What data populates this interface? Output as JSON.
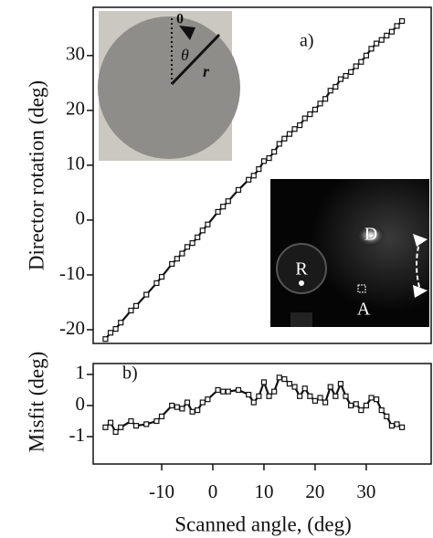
{
  "chart_data": [
    {
      "type": "line",
      "y_label": "Director rotation (deg)",
      "annotation": "a)",
      "photo_labels": [
        "0",
        "θ",
        "r"
      ],
      "pattern_labels": [
        "R",
        "D",
        "A"
      ],
      "x": [
        -21,
        -20,
        -19,
        -18,
        -16,
        -15,
        -13,
        -11,
        -10,
        -8,
        -7,
        -6,
        -5,
        -4,
        -3,
        -2,
        -1,
        1,
        2,
        3,
        5,
        7,
        8,
        9,
        10,
        11,
        12,
        13,
        14,
        15,
        16,
        17,
        18,
        19,
        20,
        21,
        22,
        23,
        24,
        25,
        26,
        27,
        28,
        29,
        30,
        31,
        32,
        33,
        34,
        35,
        36,
        37
      ],
      "series": [
        {
          "color": "#111111",
          "values": [
            -21.7,
            -20.55,
            -19.85,
            -18.7,
            -16.5,
            -15.65,
            -13.6,
            -11.5,
            -10.35,
            -8.0,
            -7.05,
            -6.1,
            -4.9,
            -4.2,
            -3.15,
            -1.9,
            -0.8,
            1.5,
            2.45,
            3.45,
            5.5,
            7.35,
            8.1,
            9.3,
            10.75,
            11.3,
            12.45,
            13.9,
            14.85,
            15.7,
            16.6,
            17.3,
            18.55,
            19.3,
            20.15,
            21.25,
            22.1,
            23.6,
            24.3,
            25.7,
            26.3,
            27.0,
            28.05,
            28.85,
            30.0,
            31.25,
            32.2,
            32.85,
            33.65,
            34.35,
            35.4,
            36.3
          ]
        }
      ],
      "xlim": [
        -23.4,
        42.7
      ],
      "ylim": [
        -22.5,
        38.8
      ],
      "yticks": [
        -20,
        -10,
        0,
        10,
        20,
        30
      ]
    },
    {
      "type": "line",
      "x_label": "Scanned angle,    (deg)",
      "y_label": "Misfit (deg)",
      "annotation": "b)",
      "x": [
        -21,
        -20,
        -19,
        -18,
        -16,
        -15,
        -13,
        -11,
        -10,
        -8,
        -7,
        -6,
        -5,
        -4,
        -3,
        -2,
        -1,
        1,
        2,
        3,
        5,
        7,
        8,
        9,
        10,
        11,
        12,
        13,
        14,
        15,
        16,
        17,
        18,
        19,
        20,
        21,
        22,
        23,
        24,
        25,
        26,
        27,
        28,
        29,
        30,
        31,
        32,
        33,
        34,
        35,
        36,
        37
      ],
      "series": [
        {
          "color": "#111111",
          "values": [
            -0.7,
            -0.55,
            -0.85,
            -0.7,
            -0.5,
            -0.65,
            -0.6,
            -0.5,
            -0.35,
            0.0,
            -0.05,
            -0.1,
            0.1,
            -0.2,
            -0.15,
            0.1,
            0.2,
            0.5,
            0.45,
            0.45,
            0.5,
            0.35,
            0.1,
            0.3,
            0.75,
            0.3,
            0.45,
            0.9,
            0.85,
            0.7,
            0.6,
            0.3,
            0.55,
            0.3,
            0.15,
            0.25,
            0.1,
            0.6,
            0.3,
            0.7,
            0.3,
            0.0,
            0.05,
            -0.15,
            0.0,
            0.25,
            0.2,
            -0.15,
            -0.35,
            -0.65,
            -0.6,
            -0.7
          ]
        }
      ],
      "xlim": [
        -23.4,
        42.7
      ],
      "xticks": [
        -10,
        0,
        10,
        20,
        30
      ],
      "ylim": [
        -1.88,
        1.35
      ],
      "yticks": [
        -1,
        0,
        1
      ]
    }
  ]
}
